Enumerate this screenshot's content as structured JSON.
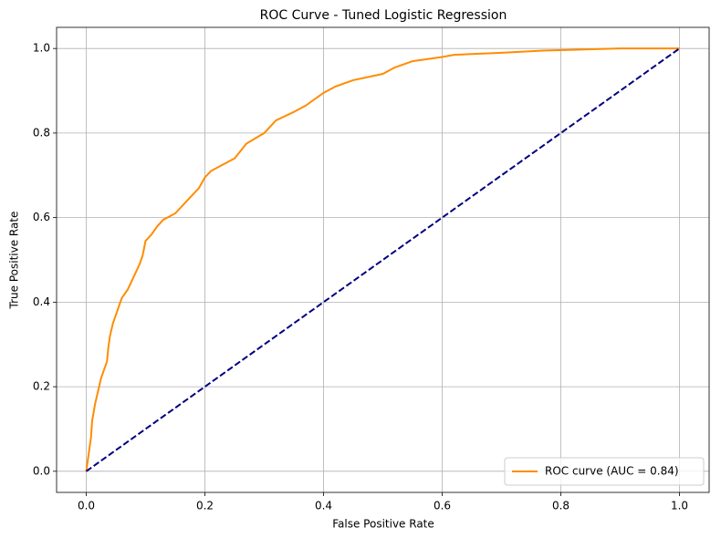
{
  "chart_data": {
    "type": "line",
    "title": "ROC Curve - Tuned Logistic Regression",
    "x_label": "False Positive Rate",
    "y_label": "True Positive Rate",
    "xlim": [
      -0.05,
      1.05
    ],
    "ylim": [
      -0.05,
      1.05
    ],
    "xticks": [
      {
        "value": 0.0,
        "label": "0.0"
      },
      0.2,
      0.4,
      0.6,
      0.8,
      {
        "value": 1.0,
        "label": "1.0"
      }
    ],
    "yticks": [
      {
        "value": 0.0,
        "label": "0.0"
      },
      0.2,
      0.4,
      0.6,
      0.8,
      {
        "value": 1.0,
        "label": "1.0"
      }
    ],
    "grid": true,
    "legend": "lower right",
    "series": [
      {
        "name": "ROC curve (AUC = 0.84)",
        "color": "#ff8c00",
        "linestyle": "solid",
        "x": [
          0,
          0.002,
          0.005,
          0.008,
          0.01,
          0.015,
          0.02,
          0.025,
          0.03,
          0.035,
          0.037,
          0.04,
          0.045,
          0.05,
          0.055,
          0.06,
          0.07,
          0.08,
          0.09,
          0.095,
          0.1,
          0.11,
          0.12,
          0.13,
          0.15,
          0.17,
          0.19,
          0.2,
          0.21,
          0.23,
          0.25,
          0.27,
          0.3,
          0.32,
          0.35,
          0.37,
          0.4,
          0.42,
          0.45,
          0.5,
          0.52,
          0.55,
          0.6,
          0.62,
          0.7,
          0.77,
          0.9,
          1.0
        ],
        "values": [
          0,
          0.02,
          0.05,
          0.08,
          0.12,
          0.16,
          0.19,
          0.22,
          0.24,
          0.26,
          0.29,
          0.32,
          0.35,
          0.37,
          0.39,
          0.41,
          0.43,
          0.46,
          0.49,
          0.51,
          0.545,
          0.56,
          0.58,
          0.595,
          0.61,
          0.64,
          0.67,
          0.695,
          0.71,
          0.725,
          0.74,
          0.775,
          0.8,
          0.83,
          0.85,
          0.865,
          0.895,
          0.91,
          0.925,
          0.94,
          0.955,
          0.97,
          0.98,
          0.985,
          0.99,
          0.995,
          1.0,
          1.0
        ]
      },
      {
        "color": "#000080",
        "linestyle": "dashed",
        "x": [
          0,
          1
        ],
        "values": [
          0,
          1
        ]
      }
    ]
  }
}
